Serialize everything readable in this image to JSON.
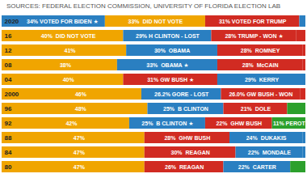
{
  "chart_data": {
    "type": "bar",
    "orientation": "horizontal",
    "stacked": true,
    "title": "SOURCES: FEDERAL ELECTION COMMISSION, UNIVERSITY OF FLORIDA ELECTION LAB",
    "categories": [
      "2020",
      "16",
      "12",
      "08",
      "04",
      "2000",
      "96",
      "92",
      "88",
      "84",
      "80"
    ],
    "series": [
      {
        "values": [
          34,
          40,
          41,
          38,
          40,
          46,
          48,
          42,
          47,
          47,
          47
        ],
        "colors": [
          "#2a7fc1",
          "#f0a500",
          "#f0a500",
          "#f0a500",
          "#f0a500",
          "#f0a500",
          "#f0a500",
          "#f0a500",
          "#f0a500",
          "#f0a500",
          "#f0a500"
        ],
        "value_labels": [
          "34% VOTED FOR BIDEN ★",
          "40%  DID NOT VOTE",
          "41%",
          "38%",
          "40%",
          "46%",
          "48%",
          "42%",
          "47%",
          "47%",
          "47%"
        ]
      },
      {
        "values": [
          33,
          29,
          30,
          33,
          31,
          26.2,
          25,
          25,
          28,
          30,
          26
        ],
        "colors": [
          "#f0a500",
          "#2a7fc1",
          "#2a7fc1",
          "#2a7fc1",
          "#d12b22",
          "#2a7fc1",
          "#2a7fc1",
          "#2a7fc1",
          "#d12b22",
          "#d12b22",
          "#d12b22"
        ],
        "value_labels": [
          "33%  DID NOT VOTE",
          "29% H CLINTON - LOST",
          "30%  OBAMA",
          "33%  OBAMA ★",
          "31% GW BUSH ★",
          "26.2% GORE - LOST",
          "25%  B CLINTON",
          "25%  B CLINTON ★",
          "28%  GHW BUSH",
          "30%  REAGAN",
          "26%  REAGAN"
        ]
      },
      {
        "values": [
          31,
          28,
          28,
          28,
          29,
          26.0,
          21,
          22,
          24,
          22,
          22
        ],
        "colors": [
          "#d12b22",
          "#d12b22",
          "#d12b22",
          "#d12b22",
          "#2a7fc1",
          "#d12b22",
          "#d12b22",
          "#d12b22",
          "#2a7fc1",
          "#2a7fc1",
          "#2a7fc1"
        ],
        "value_labels": [
          "31% VOTED FOR TRUMP",
          "28% TRUMP - WON ★",
          "28%  ROMNEY",
          "28%  McCAIN",
          "29%  KERRY",
          "26.0% GW BUSH - WON",
          "21%  DOLE",
          "22%  GHW BUSH",
          "24%  DUKAKIS",
          "22%  MONDALE",
          "22%  CARTER"
        ]
      },
      {
        "values": [
          2,
          3,
          1,
          1,
          0,
          1.8,
          6,
          11,
          1,
          1,
          5
        ],
        "colors": [
          "#2a7fc1",
          "#d12b22",
          "#d12b22",
          "#d12b22",
          "#2a7fc1",
          "#d12b22",
          "#2ca02c",
          "#2ca02c",
          "#2a7fc1",
          "#2a7fc1",
          "#2ca02c"
        ],
        "value_labels": [
          null,
          null,
          null,
          null,
          null,
          null,
          null,
          "11% PEROT",
          null,
          null,
          null
        ]
      }
    ],
    "xlim": [
      0,
      100
    ],
    "tick_labels": false,
    "data_labels": true
  }
}
